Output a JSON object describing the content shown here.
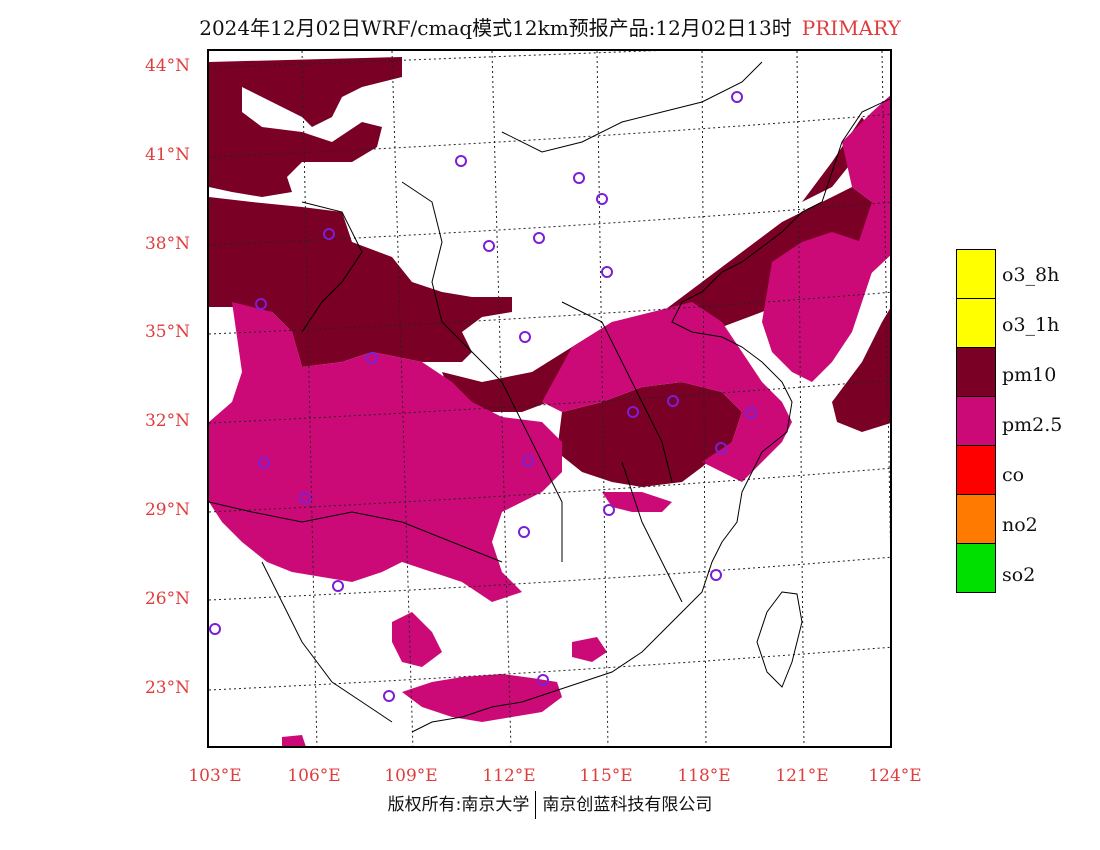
{
  "title": {
    "main": "2024年12月02日WRF/cmaq模式12km预报产品:12月02日13时",
    "tag": "PRIMARY"
  },
  "axes": {
    "lat_labels": [
      "44°N",
      "41°N",
      "38°N",
      "35°N",
      "32°N",
      "29°N",
      "26°N",
      "23°N"
    ],
    "lon_labels": [
      "103°E",
      "106°E",
      "109°E",
      "112°E",
      "115°E",
      "118°E",
      "121°E",
      "124°E"
    ]
  },
  "legend": {
    "items": [
      {
        "label": "o3_8h",
        "color": "#ffff00"
      },
      {
        "label": "o3_1h",
        "color": "#ffff00"
      },
      {
        "label": "pm10",
        "color": "#7a0026"
      },
      {
        "label": "pm2.5",
        "color": "#cc0a77"
      },
      {
        "label": "co",
        "color": "#ff0000"
      },
      {
        "label": "no2",
        "color": "#ff7a00"
      },
      {
        "label": "so2",
        "color": "#00e000"
      }
    ]
  },
  "footer": {
    "left": "版权所有:南京大学",
    "right": "南京创蓝科技有限公司"
  },
  "colors": {
    "pm10": "#7a0026",
    "pm25": "#cc0a77",
    "accent": "#e03c3c"
  }
}
